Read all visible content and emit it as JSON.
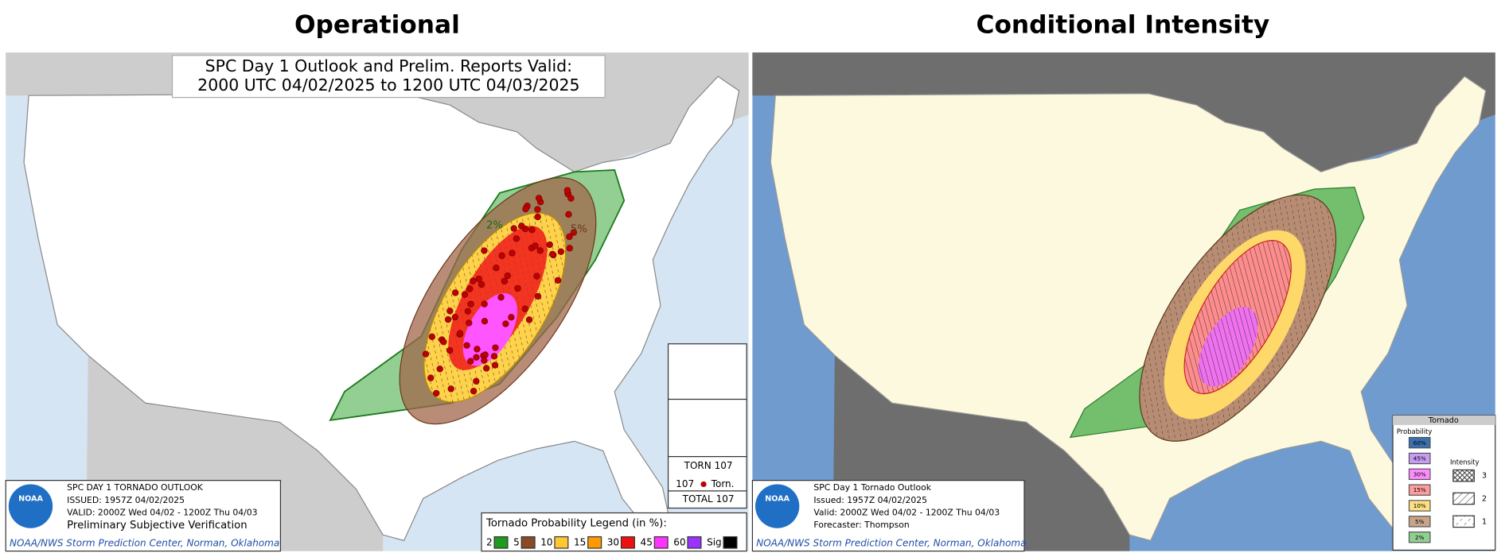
{
  "panels": [
    {
      "title": "Operational",
      "map_title": [
        "SPC Day 1 Outlook and Prelim. Reports Valid:",
        "2000 UTC 04/02/2025 to 1200 UTC 04/03/2025"
      ],
      "labels": [
        "2%",
        "5%"
      ],
      "report_box": {
        "row1": "TORN 107",
        "count": "107",
        "marker": "Torn.",
        "total": "TOTAL 107"
      },
      "info": {
        "logo": "NOAA",
        "lines": [
          "SPC DAY 1 TORNADO OUTLOOK",
          "ISSUED: 1957Z 04/02/2025",
          "VALID: 2000Z Wed 04/02 - 1200Z Thu 04/03",
          "Preliminary Subjective Verification"
        ],
        "credit": "NOAA/NWS Storm Prediction Center, Norman, Oklahoma"
      },
      "legend": {
        "title": "Tornado Probability Legend (in %):",
        "items": [
          {
            "label": "2",
            "color": "#1e9a1e"
          },
          {
            "label": "5",
            "color": "#8b4a26"
          },
          {
            "label": "10",
            "color": "#ffc832"
          },
          {
            "label": "15",
            "color": "#ff9a00"
          },
          {
            "label": "30",
            "color": "#ee1111"
          },
          {
            "label": "45",
            "color": "#ff33ff"
          },
          {
            "label": "60",
            "color": "#9a33ff"
          },
          {
            "label": "Sig",
            "color": "#000000"
          }
        ]
      }
    },
    {
      "title": "Conditional Intensity",
      "info": {
        "logo": "NOAA",
        "lines": [
          "SPC Day 1 Tornado Outlook",
          "Issued: 1957Z 04/02/2025",
          "Valid: 2000Z Wed 04/02 - 1200Z Thu 04/03",
          "Forecaster: Thompson"
        ],
        "credit": "NOAA/NWS Storm Prediction Center, Norman, Oklahoma"
      },
      "legend": {
        "title": "Tornado",
        "probability_title": "Probability",
        "items": [
          {
            "label": "60%",
            "color": "#3a6fb0"
          },
          {
            "label": "45%",
            "color": "#c79cf2"
          },
          {
            "label": "30%",
            "color": "#ff8cff"
          },
          {
            "label": "15%",
            "color": "#ff9c9c"
          },
          {
            "label": "10%",
            "color": "#ffe080"
          },
          {
            "label": "5%",
            "color": "#c9a489"
          },
          {
            "label": "2%",
            "color": "#8fcf8f"
          }
        ],
        "intensity_title": "Intensity",
        "intensity_items": [
          "3",
          "2",
          "1"
        ]
      }
    }
  ]
}
